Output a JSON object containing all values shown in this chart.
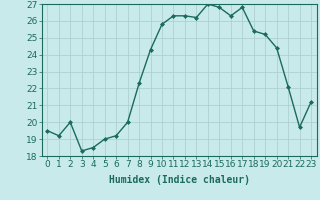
{
  "x": [
    0,
    1,
    2,
    3,
    4,
    5,
    6,
    7,
    8,
    9,
    10,
    11,
    12,
    13,
    14,
    15,
    16,
    17,
    18,
    19,
    20,
    21,
    22,
    23
  ],
  "y": [
    19.5,
    19.2,
    20.0,
    18.3,
    18.5,
    19.0,
    19.2,
    20.0,
    22.3,
    24.3,
    25.8,
    26.3,
    26.3,
    26.2,
    27.0,
    26.8,
    26.3,
    26.8,
    25.4,
    25.2,
    24.4,
    22.1,
    19.7,
    21.2
  ],
  "line_color": "#1a6b5a",
  "marker": "D",
  "markersize": 2.0,
  "bg_color": "#c8eaea",
  "grid_color": "#b0d0d0",
  "xlabel": "Humidex (Indice chaleur)",
  "ylim": [
    18,
    27
  ],
  "xlim_min": -0.5,
  "xlim_max": 23.5,
  "yticks": [
    18,
    19,
    20,
    21,
    22,
    23,
    24,
    25,
    26,
    27
  ],
  "xticks": [
    0,
    1,
    2,
    3,
    4,
    5,
    6,
    7,
    8,
    9,
    10,
    11,
    12,
    13,
    14,
    15,
    16,
    17,
    18,
    19,
    20,
    21,
    22,
    23
  ],
  "xlabel_fontsize": 7,
  "tick_fontsize": 6.5,
  "linewidth": 1.0
}
